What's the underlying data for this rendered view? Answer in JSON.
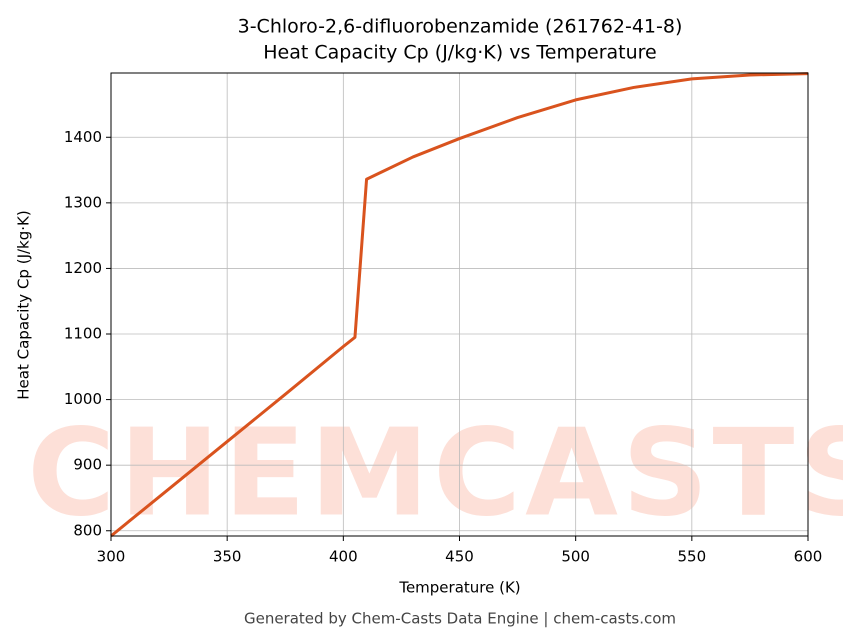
{
  "chart_data": {
    "type": "line",
    "title": "3-Chloro-2,6-difluorobenzamide (261762-41-8)",
    "subtitle": "Heat Capacity Cp (J/kg·K) vs Temperature",
    "x_label": "Temperature (K)",
    "y_label": "Heat Capacity Cp (J/kg·K)",
    "footer": "Generated by Chem-Casts Data Engine | chem-casts.com",
    "watermark": "CHEMCASTS",
    "x": [
      300,
      325,
      350,
      375,
      400,
      405,
      410,
      430,
      450,
      475,
      500,
      525,
      550,
      575,
      600
    ],
    "series": [
      {
        "name": "Cp",
        "color": "#d9531e",
        "values": [
          792,
          864,
          936,
          1008,
          1081,
          1095,
          1336,
          1370,
          1398,
          1430,
          1457,
          1476,
          1489,
          1495,
          1497
        ]
      }
    ],
    "xlim": [
      300,
      600
    ],
    "xticks": [
      300,
      350,
      400,
      450,
      500,
      550,
      600
    ],
    "ylim": [
      792,
      1498
    ],
    "yticks": [
      800,
      900,
      1000,
      1100,
      1200,
      1300,
      1400
    ],
    "grid": true
  }
}
